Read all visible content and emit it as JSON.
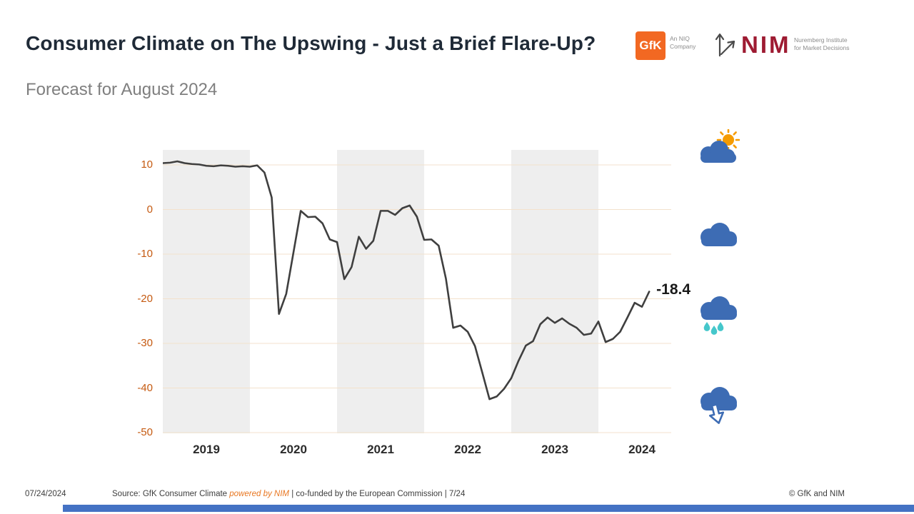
{
  "header": {
    "title": "Consumer Climate on The Upswing - Just a Brief Flare-Up?",
    "subtitle": "Forecast for August 2024"
  },
  "logos": {
    "gfk": {
      "monogram": "GfK",
      "tagline_line1": "An NIQ",
      "tagline_line2": "Company",
      "brand_color": "#F26822"
    },
    "nim": {
      "wordmark": "NIM",
      "tagline_line1": "Nuremberg Institute",
      "tagline_line2": "for Market Decisions",
      "brand_color": "#9E1B32"
    }
  },
  "chart_data": {
    "type": "line",
    "series_name": "GfK Consumer Climate indicator",
    "x_tick_labels": [
      "2019",
      "2020",
      "2021",
      "2022",
      "2023",
      "2024"
    ],
    "y_tick_labels": [
      10,
      0,
      -10,
      -20,
      -30,
      -40,
      -50
    ],
    "ylim": [
      -50,
      13.3
    ],
    "x_start": "2019-01",
    "frequency": "monthly",
    "values": [
      10.4,
      10.5,
      10.8,
      10.4,
      10.2,
      10.1,
      9.8,
      9.7,
      9.9,
      9.8,
      9.6,
      9.7,
      9.6,
      9.9,
      8.3,
      2.7,
      -23.4,
      -18.9,
      -9.6,
      -0.3,
      -1.7,
      -1.6,
      -3.1,
      -6.7,
      -7.3,
      -15.6,
      -12.9,
      -6.1,
      -8.8,
      -7.0,
      -0.3,
      -0.3,
      -1.2,
      0.3,
      0.9,
      -1.6,
      -6.8,
      -6.7,
      -8.1,
      -15.5,
      -26.5,
      -26.0,
      -27.4,
      -30.6,
      -36.5,
      -42.5,
      -41.9,
      -40.2,
      -37.8,
      -33.9,
      -30.5,
      -29.5,
      -25.7,
      -24.2,
      -25.4,
      -24.4,
      -25.6,
      -26.5,
      -28.1,
      -27.8,
      -25.1,
      -29.7,
      -29.0,
      -27.4,
      -24.2,
      -20.9,
      -21.8,
      -18.4
    ],
    "annotation_label": "-18.4",
    "shaded_year_labels": [
      "2019",
      "2021",
      "2023"
    ],
    "grid": true,
    "legend": false,
    "colors": {
      "line": "#3F3F3F",
      "band": "#EEEEEE",
      "grid": "#F3E1CC",
      "y_tick": "#C55A11",
      "x_tick": "#2B2B2B"
    }
  },
  "weather_icons": [
    {
      "name": "partly-sunny-icon"
    },
    {
      "name": "cloudy-icon"
    },
    {
      "name": "rain-icon"
    },
    {
      "name": "cloud-arrow-down-icon"
    }
  ],
  "footer": {
    "date": "07/24/2024",
    "source_prefix": "Source: GfK Consumer Climate ",
    "source_powered": "powered by NIM",
    "source_suffix": " | co-funded by the European Commission | 7/24",
    "copyright": "© GfK and NIM"
  }
}
